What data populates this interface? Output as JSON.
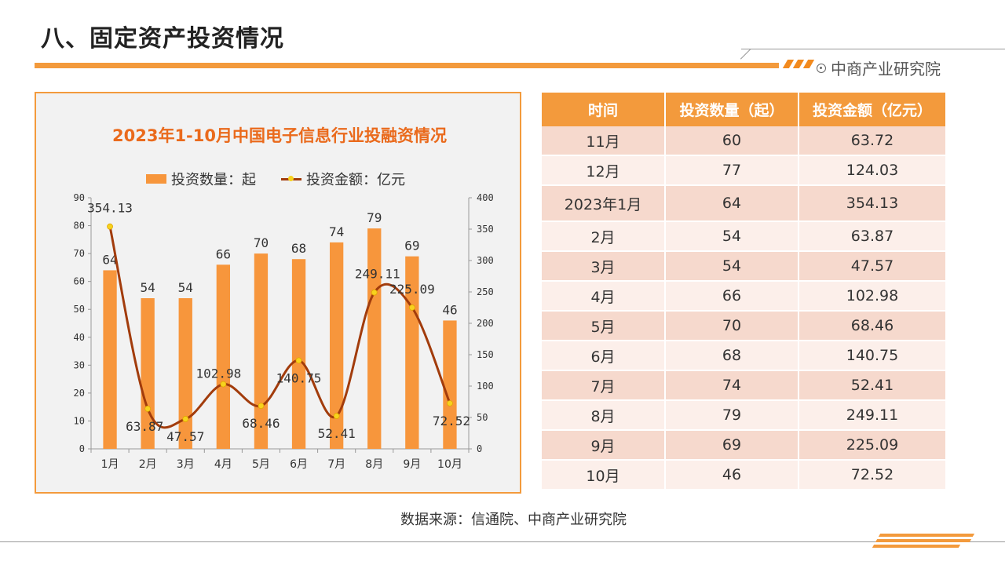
{
  "slide": {
    "title": "八、固定资产投资情况",
    "brand": "中商产业研究院",
    "source": "数据来源：信通院、中商产业研究院"
  },
  "colors": {
    "accent": "#f39a3c",
    "title_accent": "#ea6a1c",
    "bar": "#f7963c",
    "line": "#a23c0c",
    "marker": "#f7d21e",
    "row_dark": "#f6d9cd",
    "row_light": "#fcefea"
  },
  "chart_data": {
    "type": "bar",
    "title": "2023年1-10月中国电子信息行业投融资情况",
    "categories": [
      "1月",
      "2月",
      "3月",
      "4月",
      "5月",
      "6月",
      "7月",
      "8月",
      "9月",
      "10月"
    ],
    "series": [
      {
        "name": "投资数量：起",
        "type": "bar",
        "axis": "left",
        "values": [
          64,
          54,
          54,
          66,
          70,
          68,
          74,
          79,
          69,
          46
        ],
        "labels": [
          "64",
          "54",
          "54",
          "66",
          "70",
          "68",
          "74",
          "79",
          "69",
          "46"
        ]
      },
      {
        "name": "投资金额：亿元",
        "type": "line",
        "axis": "right",
        "values": [
          354.13,
          63.87,
          47.57,
          102.98,
          68.46,
          140.75,
          52.41,
          249.11,
          225.09,
          72.52
        ],
        "labels": [
          "354.13",
          "63.87",
          "47.57",
          "102.98",
          "68.46",
          "140.75",
          "52.41",
          "249.11",
          "225.09",
          "72.52"
        ]
      }
    ],
    "ylim_left": [
      0,
      90
    ],
    "yticks_left": [
      "0",
      "10",
      "20",
      "30",
      "40",
      "50",
      "60",
      "70",
      "80",
      "90"
    ],
    "ylim_right": [
      0,
      400
    ],
    "yticks_right": [
      "0",
      "50",
      "100",
      "150",
      "200",
      "250",
      "300",
      "350",
      "400"
    ],
    "legend_position": "top",
    "grid": false
  },
  "table": {
    "headers": [
      "时间",
      "投资数量（起）",
      "投资金额（亿元）"
    ],
    "rows": [
      [
        "11月",
        "60",
        "63.72"
      ],
      [
        "12月",
        "77",
        "124.03"
      ],
      [
        "2023年1月",
        "64",
        "354.13"
      ],
      [
        "2月",
        "54",
        "63.87"
      ],
      [
        "3月",
        "54",
        "47.57"
      ],
      [
        "4月",
        "66",
        "102.98"
      ],
      [
        "5月",
        "70",
        "68.46"
      ],
      [
        "6月",
        "68",
        "140.75"
      ],
      [
        "7月",
        "74",
        "52.41"
      ],
      [
        "8月",
        "79",
        "249.11"
      ],
      [
        "9月",
        "69",
        "225.09"
      ],
      [
        "10月",
        "46",
        "72.52"
      ]
    ]
  }
}
